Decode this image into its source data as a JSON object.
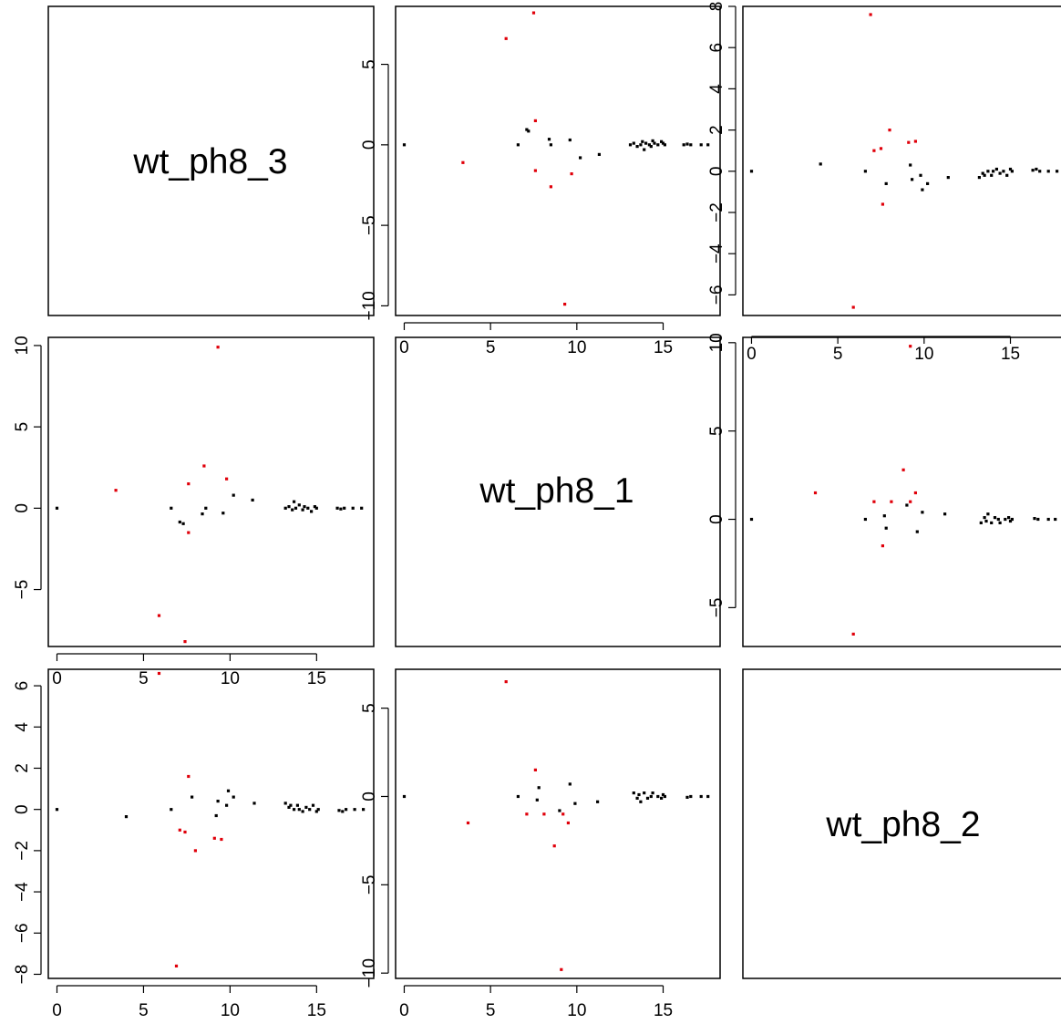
{
  "chart_data": {
    "type": "scatter",
    "layout": "scatterplot-matrix",
    "variables": [
      "wt_ph8_3",
      "wt_ph8_1",
      "wt_ph8_2"
    ],
    "colors": {
      "normal": "#000000",
      "highlight": "#e0000a"
    },
    "x_ticks": [
      0,
      5,
      10,
      15
    ],
    "xlim": [
      -0.5,
      18.3
    ],
    "panels": [
      {
        "id": "r1c2",
        "row": 1,
        "col": 2,
        "ylim": [
          -10.6,
          8.6
        ],
        "y_ticks": [
          -10,
          -5,
          0,
          5
        ],
        "ytick_labels": [
          "−10",
          "−5",
          "0",
          "5"
        ],
        "x_axis": "bottom",
        "y_axis": "left",
        "points": [
          [
            0,
            0,
            0
          ],
          [
            3.4,
            -1.1,
            1
          ],
          [
            5.9,
            6.6,
            1
          ],
          [
            7.5,
            8.2,
            1
          ],
          [
            7.1,
            0.95,
            0
          ],
          [
            7.2,
            0.85,
            0
          ],
          [
            6.6,
            0,
            0
          ],
          [
            7.6,
            1.5,
            1
          ],
          [
            7.6,
            -1.6,
            1
          ],
          [
            8.4,
            0.35,
            0
          ],
          [
            8.5,
            0,
            0
          ],
          [
            8.5,
            -2.6,
            1
          ],
          [
            9.3,
            -9.9,
            1
          ],
          [
            9.6,
            0.3,
            0
          ],
          [
            9.7,
            -1.8,
            1
          ],
          [
            10.2,
            -0.8,
            0
          ],
          [
            11.3,
            -0.6,
            0
          ],
          [
            13.1,
            0,
            0
          ],
          [
            13.3,
            0.1,
            0
          ],
          [
            13.5,
            -0.1,
            0
          ],
          [
            13.7,
            0,
            0
          ],
          [
            13.8,
            0.2,
            0
          ],
          [
            13.9,
            -0.3,
            0
          ],
          [
            14.0,
            0.1,
            0
          ],
          [
            14.2,
            0,
            0
          ],
          [
            14.3,
            -0.1,
            0
          ],
          [
            14.4,
            0.25,
            0
          ],
          [
            14.5,
            0.1,
            0
          ],
          [
            14.7,
            0,
            0
          ],
          [
            14.9,
            0.2,
            0
          ],
          [
            15.0,
            0.1,
            0
          ],
          [
            15.1,
            0,
            0
          ],
          [
            16.2,
            0,
            0
          ],
          [
            16.4,
            0.05,
            0
          ],
          [
            16.6,
            0,
            0
          ],
          [
            17.2,
            0,
            0
          ],
          [
            17.6,
            0,
            0
          ]
        ]
      },
      {
        "id": "r1c3",
        "row": 1,
        "col": 3,
        "ylim": [
          -7.0,
          8.0
        ],
        "y_ticks": [
          -6,
          -4,
          -2,
          0,
          2,
          4,
          6,
          8
        ],
        "ytick_labels": [
          "−6",
          "−4",
          "−2",
          "0",
          "2",
          "4",
          "6",
          "8"
        ],
        "x_axis": "none",
        "y_axis": "left",
        "points": [
          [
            0,
            0,
            0
          ],
          [
            4.0,
            0.35,
            0
          ],
          [
            5.9,
            -6.6,
            1
          ],
          [
            6.6,
            0,
            0
          ],
          [
            6.9,
            7.6,
            1
          ],
          [
            7.1,
            1.0,
            1
          ],
          [
            7.5,
            1.1,
            1
          ],
          [
            7.6,
            -1.6,
            1
          ],
          [
            7.8,
            -0.6,
            0
          ],
          [
            8.0,
            2.0,
            1
          ],
          [
            9.1,
            1.4,
            1
          ],
          [
            9.2,
            0.3,
            0
          ],
          [
            9.3,
            -0.4,
            0
          ],
          [
            9.5,
            1.45,
            1
          ],
          [
            9.8,
            -0.2,
            0
          ],
          [
            9.9,
            -0.9,
            0
          ],
          [
            10.2,
            -0.6,
            0
          ],
          [
            11.4,
            -0.3,
            0
          ],
          [
            13.2,
            -0.3,
            0
          ],
          [
            13.4,
            -0.1,
            0
          ],
          [
            13.5,
            -0.2,
            0
          ],
          [
            13.7,
            0,
            0
          ],
          [
            13.9,
            -0.2,
            0
          ],
          [
            14.0,
            0,
            0
          ],
          [
            14.2,
            0.1,
            0
          ],
          [
            14.4,
            -0.1,
            0
          ],
          [
            14.6,
            0,
            0
          ],
          [
            14.8,
            -0.2,
            0
          ],
          [
            15.0,
            0.1,
            0
          ],
          [
            15.1,
            0,
            0
          ],
          [
            16.3,
            0.05,
            0
          ],
          [
            16.5,
            0.1,
            0
          ],
          [
            16.7,
            0,
            0
          ],
          [
            17.2,
            0,
            0
          ],
          [
            17.7,
            0,
            0
          ]
        ]
      },
      {
        "id": "r2c1",
        "row": 2,
        "col": 1,
        "ylim": [
          -8.5,
          10.5
        ],
        "y_ticks": [
          -5,
          0,
          5,
          10
        ],
        "ytick_labels": [
          "−5",
          "0",
          "5",
          "10"
        ],
        "x_axis": "bottom",
        "y_axis": "left",
        "points": [
          [
            0,
            0,
            0
          ],
          [
            3.4,
            1.1,
            1
          ],
          [
            5.9,
            -6.6,
            1
          ],
          [
            6.6,
            0,
            0
          ],
          [
            7.1,
            -0.85,
            0
          ],
          [
            7.3,
            -0.95,
            0
          ],
          [
            7.4,
            -8.2,
            1
          ],
          [
            7.6,
            1.5,
            1
          ],
          [
            7.6,
            -1.5,
            1
          ],
          [
            8.4,
            -0.35,
            0
          ],
          [
            8.5,
            2.6,
            1
          ],
          [
            8.6,
            0,
            0
          ],
          [
            9.3,
            9.9,
            1
          ],
          [
            9.6,
            -0.3,
            0
          ],
          [
            9.8,
            1.8,
            1
          ],
          [
            10.2,
            0.8,
            0
          ],
          [
            11.3,
            0.5,
            0
          ],
          [
            13.2,
            0,
            0
          ],
          [
            13.4,
            0.1,
            0
          ],
          [
            13.6,
            -0.1,
            0
          ],
          [
            13.7,
            0.4,
            0
          ],
          [
            13.8,
            0,
            0
          ],
          [
            14.0,
            0.2,
            0
          ],
          [
            14.2,
            -0.1,
            0
          ],
          [
            14.3,
            0.1,
            0
          ],
          [
            14.5,
            0,
            0
          ],
          [
            14.7,
            -0.2,
            0
          ],
          [
            14.9,
            0.1,
            0
          ],
          [
            15.0,
            0,
            0
          ],
          [
            16.2,
            0,
            0
          ],
          [
            16.4,
            -0.05,
            0
          ],
          [
            16.6,
            0,
            0
          ],
          [
            17.1,
            0,
            0
          ],
          [
            17.6,
            0,
            0
          ]
        ]
      },
      {
        "id": "r2c3",
        "row": 2,
        "col": 3,
        "ylim": [
          -7.2,
          10.3
        ],
        "y_ticks": [
          -5,
          0,
          5,
          10
        ],
        "ytick_labels": [
          "−5",
          "0",
          "5",
          "10"
        ],
        "x_axis": "top",
        "y_axis": "left",
        "points": [
          [
            0,
            0,
            0
          ],
          [
            3.7,
            1.5,
            1
          ],
          [
            5.9,
            -6.5,
            1
          ],
          [
            6.6,
            0,
            0
          ],
          [
            7.1,
            1.0,
            1
          ],
          [
            7.6,
            -1.5,
            1
          ],
          [
            7.7,
            0.2,
            0
          ],
          [
            7.8,
            -0.5,
            0
          ],
          [
            8.1,
            1.0,
            1
          ],
          [
            8.8,
            2.8,
            1
          ],
          [
            9.0,
            0.8,
            0
          ],
          [
            9.2,
            9.8,
            1
          ],
          [
            9.2,
            1.0,
            1
          ],
          [
            9.5,
            1.5,
            1
          ],
          [
            9.6,
            -0.7,
            0
          ],
          [
            9.9,
            0.4,
            0
          ],
          [
            11.2,
            0.3,
            0
          ],
          [
            13.3,
            -0.2,
            0
          ],
          [
            13.5,
            0.1,
            0
          ],
          [
            13.6,
            -0.1,
            0
          ],
          [
            13.7,
            0.3,
            0
          ],
          [
            13.9,
            -0.2,
            0
          ],
          [
            14.1,
            0.1,
            0
          ],
          [
            14.3,
            0,
            0
          ],
          [
            14.4,
            -0.2,
            0
          ],
          [
            14.7,
            0,
            0
          ],
          [
            14.9,
            0.1,
            0
          ],
          [
            15.0,
            -0.1,
            0
          ],
          [
            15.1,
            0,
            0
          ],
          [
            16.4,
            0.05,
            0
          ],
          [
            16.6,
            0,
            0
          ],
          [
            17.2,
            0,
            0
          ],
          [
            17.6,
            0,
            0
          ]
        ]
      },
      {
        "id": "r3c1",
        "row": 3,
        "col": 1,
        "ylim": [
          -8.2,
          6.8
        ],
        "y_ticks": [
          -8,
          -6,
          -4,
          -2,
          0,
          2,
          4,
          6
        ],
        "ytick_labels": [
          "−8",
          "−6",
          "−4",
          "−2",
          "0",
          "2",
          "4",
          "6"
        ],
        "x_axis": "bottom",
        "y_axis": "left",
        "points": [
          [
            0,
            0,
            0
          ],
          [
            4.0,
            -0.35,
            0
          ],
          [
            5.9,
            6.6,
            1
          ],
          [
            6.6,
            0,
            0
          ],
          [
            6.9,
            -7.6,
            1
          ],
          [
            7.1,
            -1.0,
            1
          ],
          [
            7.4,
            -1.1,
            1
          ],
          [
            7.6,
            1.6,
            1
          ],
          [
            7.8,
            0.6,
            0
          ],
          [
            8.0,
            -2.0,
            1
          ],
          [
            9.1,
            -1.4,
            1
          ],
          [
            9.2,
            -0.3,
            0
          ],
          [
            9.3,
            0.4,
            0
          ],
          [
            9.5,
            -1.45,
            1
          ],
          [
            9.8,
            0.2,
            0
          ],
          [
            9.9,
            0.9,
            0
          ],
          [
            10.2,
            0.6,
            0
          ],
          [
            11.4,
            0.3,
            0
          ],
          [
            13.2,
            0.3,
            0
          ],
          [
            13.4,
            0.1,
            0
          ],
          [
            13.5,
            0.2,
            0
          ],
          [
            13.7,
            0,
            0
          ],
          [
            13.9,
            0.2,
            0
          ],
          [
            14.0,
            0,
            0
          ],
          [
            14.2,
            -0.1,
            0
          ],
          [
            14.4,
            0.1,
            0
          ],
          [
            14.6,
            0,
            0
          ],
          [
            14.8,
            0.2,
            0
          ],
          [
            15.0,
            -0.1,
            0
          ],
          [
            15.1,
            0,
            0
          ],
          [
            16.3,
            -0.05,
            0
          ],
          [
            16.5,
            -0.1,
            0
          ],
          [
            16.7,
            0,
            0
          ],
          [
            17.2,
            0,
            0
          ],
          [
            17.7,
            0,
            0
          ]
        ]
      },
      {
        "id": "r3c2",
        "row": 3,
        "col": 2,
        "ylim": [
          -10.3,
          7.2
        ],
        "y_ticks": [
          -10,
          -5,
          0,
          5
        ],
        "ytick_labels": [
          "−10",
          "−5",
          "0",
          "5"
        ],
        "x_axis": "bottom",
        "y_axis": "left",
        "points": [
          [
            0,
            0,
            0
          ],
          [
            3.7,
            -1.5,
            1
          ],
          [
            5.9,
            6.5,
            1
          ],
          [
            6.6,
            0,
            0
          ],
          [
            7.1,
            -1.0,
            1
          ],
          [
            7.6,
            1.5,
            1
          ],
          [
            7.7,
            -0.2,
            0
          ],
          [
            7.8,
            0.5,
            0
          ],
          [
            8.1,
            -1.0,
            1
          ],
          [
            8.7,
            -2.8,
            1
          ],
          [
            9.0,
            -0.8,
            0
          ],
          [
            9.1,
            -9.8,
            1
          ],
          [
            9.2,
            -1.0,
            1
          ],
          [
            9.5,
            -1.5,
            1
          ],
          [
            9.6,
            0.7,
            0
          ],
          [
            9.9,
            -0.4,
            0
          ],
          [
            11.2,
            -0.3,
            0
          ],
          [
            13.3,
            0.2,
            0
          ],
          [
            13.5,
            -0.1,
            0
          ],
          [
            13.6,
            0.1,
            0
          ],
          [
            13.7,
            -0.3,
            0
          ],
          [
            13.9,
            0.2,
            0
          ],
          [
            14.1,
            -0.1,
            0
          ],
          [
            14.3,
            0,
            0
          ],
          [
            14.4,
            0.2,
            0
          ],
          [
            14.7,
            0,
            0
          ],
          [
            14.9,
            -0.1,
            0
          ],
          [
            15.0,
            0.1,
            0
          ],
          [
            15.1,
            0,
            0
          ],
          [
            16.4,
            -0.05,
            0
          ],
          [
            16.6,
            0,
            0
          ],
          [
            17.2,
            0,
            0
          ],
          [
            17.6,
            0,
            0
          ]
        ]
      }
    ]
  }
}
